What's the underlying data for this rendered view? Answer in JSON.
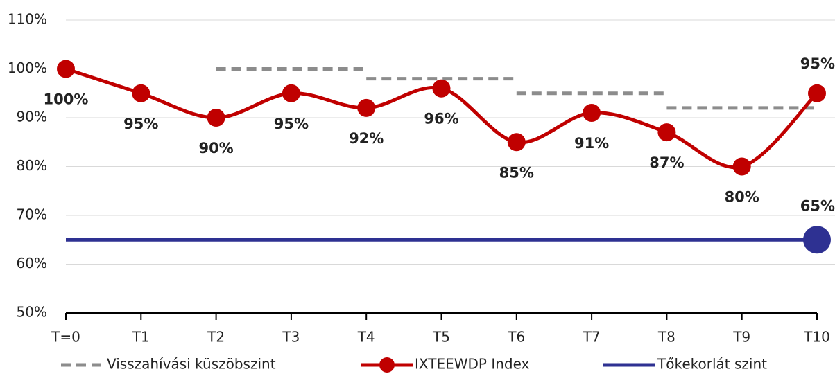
{
  "chart_data": {
    "type": "line",
    "categories": [
      "T=0",
      "T1",
      "T2",
      "T3",
      "T4",
      "T5",
      "T6",
      "T7",
      "T8",
      "T9",
      "T10"
    ],
    "ylim": [
      50,
      110
    ],
    "yticks": [
      {
        "value": 50,
        "label": "50%"
      },
      {
        "value": 60,
        "label": "60%"
      },
      {
        "value": 70,
        "label": "70%"
      },
      {
        "value": 80,
        "label": "80%"
      },
      {
        "value": 90,
        "label": "90%"
      },
      {
        "value": 100,
        "label": "100%"
      },
      {
        "value": 110,
        "label": "110%"
      }
    ],
    "grid": true,
    "series": [
      {
        "name": "Visszahívási küszöbszint",
        "color": "#8c8c8c",
        "style": "dashed-step",
        "values": [
          null,
          null,
          100,
          null,
          98,
          null,
          95,
          null,
          92,
          null,
          null
        ]
      },
      {
        "name": "IXTEEWDP Index",
        "color": "#c00000",
        "style": "smooth-markers",
        "values": [
          100,
          95,
          90,
          95,
          92,
          96,
          85,
          91,
          87,
          80,
          95
        ],
        "value_labels": [
          "100%",
          "95%",
          "90%",
          "95%",
          "92%",
          "96%",
          "85%",
          "91%",
          "87%",
          "80%",
          "95%"
        ]
      },
      {
        "name": "Tőkekorlát szint",
        "color": "#2e3192",
        "style": "flat",
        "values": [
          65,
          65,
          65,
          65,
          65,
          65,
          65,
          65,
          65,
          65,
          65
        ],
        "value_labels": [
          null,
          null,
          null,
          null,
          null,
          null,
          null,
          null,
          null,
          null,
          "65%"
        ]
      }
    ]
  }
}
